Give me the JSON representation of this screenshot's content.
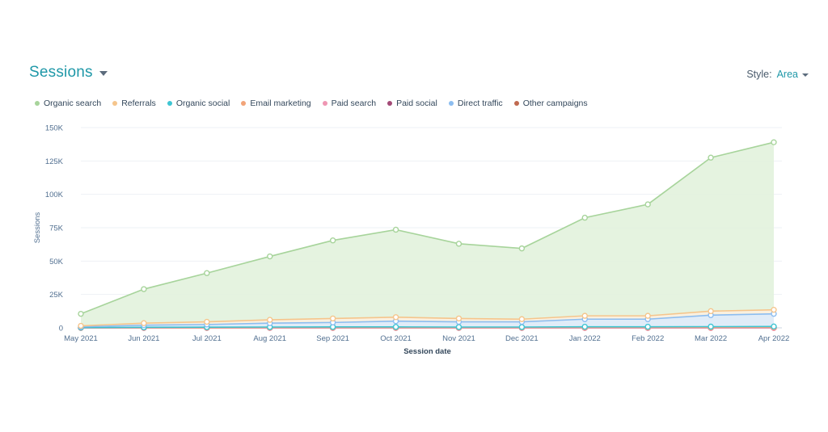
{
  "header": {
    "title": "Sessions",
    "style_label": "Style:",
    "style_value": "Area"
  },
  "legend": [
    {
      "label": "Organic search",
      "color": "#a7d49b"
    },
    {
      "label": "Referrals",
      "color": "#f5c58c"
    },
    {
      "label": "Organic social",
      "color": "#3ec5d3"
    },
    {
      "label": "Email marketing",
      "color": "#f2a479"
    },
    {
      "label": "Paid search",
      "color": "#ef96b3"
    },
    {
      "label": "Paid social",
      "color": "#a34a77"
    },
    {
      "label": "Direct traffic",
      "color": "#8cbdf0"
    },
    {
      "label": "Other campaigns",
      "color": "#c06a50"
    }
  ],
  "chart_data": {
    "type": "area",
    "title": "",
    "xlabel": "Session date",
    "ylabel": "Sessions",
    "categories": [
      "May 2021",
      "Jun 2021",
      "Jul 2021",
      "Aug 2021",
      "Sep 2021",
      "Oct 2021",
      "Nov 2021",
      "Dec 2021",
      "Jan 2022",
      "Feb 2022",
      "Mar 2022",
      "Apr 2022"
    ],
    "yticks": [
      0,
      25000,
      50000,
      75000,
      100000,
      125000,
      150000
    ],
    "ytick_labels": [
      "0",
      "25K",
      "50K",
      "75K",
      "100K",
      "125K",
      "150K"
    ],
    "ylim": [
      0,
      150000
    ],
    "grid": true,
    "legend_position": "top-left",
    "series": [
      {
        "name": "Organic search",
        "color": "#a7d49b",
        "fill": "#e2f2dd",
        "values": [
          10500,
          29000,
          41000,
          53500,
          65500,
          73500,
          63000,
          59500,
          82500,
          92500,
          127500,
          139000
        ]
      },
      {
        "name": "Referrals",
        "color": "#f5c58c",
        "fill": "#fbf0e0",
        "values": [
          1500,
          3500,
          4500,
          6000,
          7000,
          8000,
          7000,
          6500,
          9000,
          9000,
          12500,
          13500
        ]
      },
      {
        "name": "Direct traffic",
        "color": "#8cbdf0",
        "fill": "#ddebfb",
        "values": [
          800,
          2000,
          2500,
          3500,
          4000,
          5000,
          4500,
          4500,
          6500,
          6500,
          9500,
          10500
        ]
      },
      {
        "name": "Organic social",
        "color": "#3ec5d3",
        "fill": "none",
        "values": [
          200,
          400,
          500,
          600,
          700,
          700,
          600,
          600,
          800,
          800,
          900,
          1000
        ]
      },
      {
        "name": "Email marketing",
        "color": "#f2a479",
        "fill": "none",
        "values": [
          100,
          200,
          200,
          300,
          300,
          300,
          300,
          300,
          400,
          400,
          400,
          500
        ]
      },
      {
        "name": "Paid search",
        "color": "#ef96b3",
        "fill": "none",
        "values": [
          0,
          0,
          0,
          0,
          0,
          0,
          0,
          0,
          0,
          0,
          0,
          0
        ]
      },
      {
        "name": "Paid social",
        "color": "#a34a77",
        "fill": "none",
        "values": [
          0,
          0,
          0,
          0,
          0,
          0,
          0,
          0,
          0,
          0,
          0,
          0
        ]
      },
      {
        "name": "Other campaigns",
        "color": "#c06a50",
        "fill": "none",
        "values": [
          0,
          0,
          0,
          0,
          0,
          0,
          0,
          0,
          0,
          0,
          0,
          0
        ]
      }
    ]
  }
}
